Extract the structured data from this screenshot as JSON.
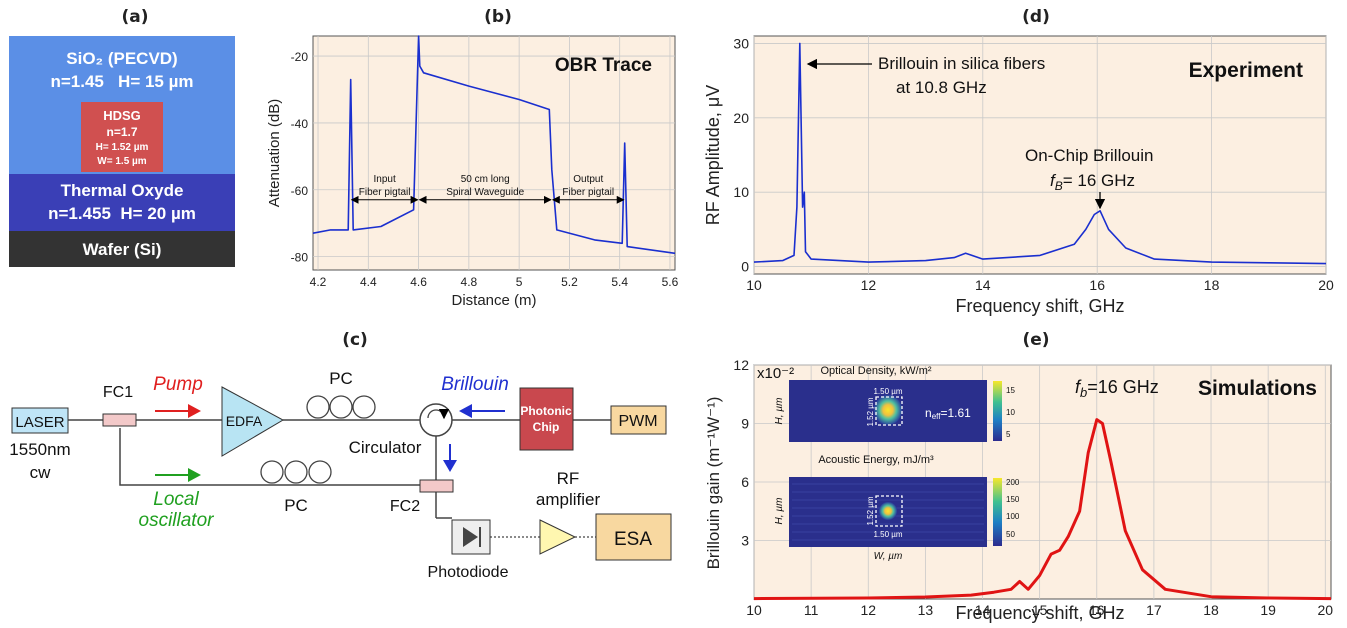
{
  "panel_labels": {
    "a": "(a)",
    "b": "(b)",
    "c": "(c)",
    "d": "(d)",
    "e": "(e)"
  },
  "panel_a": {
    "layers": [
      {
        "title": "SiO₂ (PECVD)",
        "props": "n=1.45   H= 15 µm",
        "color": "#5b8fe6"
      },
      {
        "title": "Thermal Oxyde",
        "props": "n=1.455  H= 20 µm",
        "color": "#3a3fb6"
      },
      {
        "title": "Wafer (Si)",
        "props": "",
        "color": "#333333"
      }
    ],
    "core": {
      "title": "HDSG",
      "n": "n=1.7",
      "h": "H= 1.52 µm",
      "w": "W= 1.5 µm",
      "color": "#d05050"
    }
  },
  "chart_data": [
    {
      "id": "b",
      "type": "line",
      "title": "OBR Trace",
      "xlabel": "Distance (m)",
      "ylabel": "Attenuation (dB)",
      "xlim": [
        4.18,
        5.62
      ],
      "ylim": [
        -84,
        -14
      ],
      "xticks": [
        "4.2",
        "4.4",
        "4.6",
        "4.8",
        "5",
        "5.2",
        "5.4",
        "5.6"
      ],
      "xtick_values": [
        4.2,
        4.4,
        4.6,
        4.8,
        5.0,
        5.2,
        5.4,
        5.6
      ],
      "yticks": [
        "-20",
        "-40",
        "-60",
        "-80"
      ],
      "ytick_values": [
        -20,
        -40,
        -60,
        -80
      ],
      "series": [
        {
          "color": "#1a2fcf",
          "x": [
            4.18,
            4.25,
            4.32,
            4.33,
            4.34,
            4.45,
            4.58,
            4.6,
            4.605,
            4.62,
            4.8,
            5.0,
            5.12,
            5.13,
            5.15,
            5.3,
            5.41,
            5.42,
            5.43,
            5.62
          ],
          "y": [
            -73,
            -72,
            -72,
            -27,
            -72,
            -71,
            -66,
            -14,
            -23,
            -25,
            -29,
            -33,
            -36,
            -54,
            -72,
            -75,
            -76,
            -46,
            -77,
            -79
          ]
        }
      ],
      "annotations": [
        {
          "text": "Input",
          "text2": "Fiber pigtail",
          "x1": 4.33,
          "x2": 4.6,
          "y": -63
        },
        {
          "text": "50 cm long",
          "text2": "Spiral Waveguide",
          "x1": 4.6,
          "x2": 5.13,
          "y": -63
        },
        {
          "text": "Output",
          "text2": "Fiber pigtail",
          "x1": 5.13,
          "x2": 5.42,
          "y": -63
        }
      ]
    },
    {
      "id": "d",
      "type": "line",
      "title": "Experiment",
      "xlabel": "Frequency shift, GHz",
      "ylabel": "RF Amplitude, μV",
      "xlim": [
        10,
        20
      ],
      "ylim": [
        -1,
        31
      ],
      "xticks": [
        "10",
        "12",
        "14",
        "16",
        "18",
        "20"
      ],
      "xtick_values": [
        10,
        12,
        14,
        16,
        18,
        20
      ],
      "yticks": [
        "0",
        "10",
        "20",
        "30"
      ],
      "ytick_values": [
        0,
        10,
        20,
        30
      ],
      "series": [
        {
          "color": "#1a2fcf",
          "x": [
            10.0,
            10.5,
            10.7,
            10.75,
            10.8,
            10.85,
            10.88,
            10.9,
            11.0,
            12.0,
            13.0,
            13.5,
            13.7,
            14.0,
            15.0,
            15.6,
            15.8,
            15.95,
            16.05,
            16.2,
            16.5,
            17.0,
            18.0,
            19.0,
            20.0
          ],
          "y": [
            0.6,
            0.8,
            1.5,
            8,
            30,
            8,
            10,
            2,
            1.0,
            0.6,
            0.8,
            1.2,
            1.8,
            1.0,
            1.5,
            3,
            5,
            7,
            7.5,
            5,
            2.5,
            1.0,
            0.6,
            0.5,
            0.4
          ]
        }
      ],
      "annotations": [
        {
          "text": "Brillouin in silica fibers",
          "text2": "at 10.8 GHz"
        },
        {
          "text": "On-Chip Brillouin",
          "text2": "f",
          "sub": "B",
          "text3": "= 16 GHz"
        }
      ]
    },
    {
      "id": "e",
      "type": "line",
      "title": "Simulations",
      "xlabel": "Frequency shift, GHz",
      "ylabel": "Brillouin gain (m⁻¹W⁻¹)",
      "yscale_label": "x10⁻²",
      "xlim": [
        10,
        20.1
      ],
      "ylim": [
        0,
        12
      ],
      "xticks": [
        "10",
        "11",
        "12",
        "13",
        "14",
        "15",
        "16",
        "17",
        "18",
        "19",
        "20"
      ],
      "xtick_values": [
        10,
        11,
        12,
        13,
        14,
        15,
        16,
        17,
        18,
        19,
        20
      ],
      "yticks": [
        "3",
        "6",
        "9",
        "12"
      ],
      "ytick_values": [
        3,
        6,
        9,
        12
      ],
      "series": [
        {
          "color": "#e01414",
          "x": [
            10,
            12,
            13,
            13.8,
            14.2,
            14.5,
            14.65,
            14.8,
            15.0,
            15.2,
            15.35,
            15.5,
            15.7,
            15.85,
            16.0,
            16.1,
            16.25,
            16.5,
            16.8,
            17.2,
            18,
            19,
            20.1
          ],
          "y": [
            0.02,
            0.05,
            0.1,
            0.2,
            0.35,
            0.5,
            0.9,
            0.5,
            1.2,
            2.3,
            2.5,
            3.2,
            4.5,
            7.5,
            9.2,
            9.0,
            7.0,
            3.5,
            1.5,
            0.5,
            0.12,
            0.05,
            0.02
          ]
        }
      ],
      "annotation": {
        "text": "f",
        "sub": "b",
        "text2": "=16 GHz"
      },
      "insets": [
        {
          "title": "Optical Density, kW/m²",
          "ylab": "H, µm",
          "dimx": "1.50 µm",
          "dimy": "1.52 µm",
          "neff": "n",
          "neff_sub": "eff",
          "neff_val": "=1.61",
          "cbar": [
            "15",
            "10",
            "5"
          ]
        },
        {
          "title": "Acoustic Energy, mJ/m³",
          "ylab": "H, µm",
          "xlab": "W, µm",
          "dimx": "1.50 µm",
          "dimy": "1.52 µm",
          "cbar": [
            "200",
            "150",
            "100",
            "50"
          ]
        }
      ]
    }
  ],
  "panel_c": {
    "laser": "LASER",
    "laser_spec1": "1550nm",
    "laser_spec2": "cw",
    "fc1": "FC1",
    "fc2": "FC2",
    "pump": "Pump",
    "edfa": "EDFA",
    "pc_top": "PC",
    "pc_bottom": "PC",
    "circulator": "Circulator",
    "brillouin": "Brillouin",
    "chip1": "Photonic",
    "chip2": "Chip",
    "pwm": "PWM",
    "lo1": "Local",
    "lo2": "oscillator",
    "rf1": "RF",
    "rf2": "amplifier",
    "esa": "ESA",
    "photodiode": "Photodiode"
  }
}
